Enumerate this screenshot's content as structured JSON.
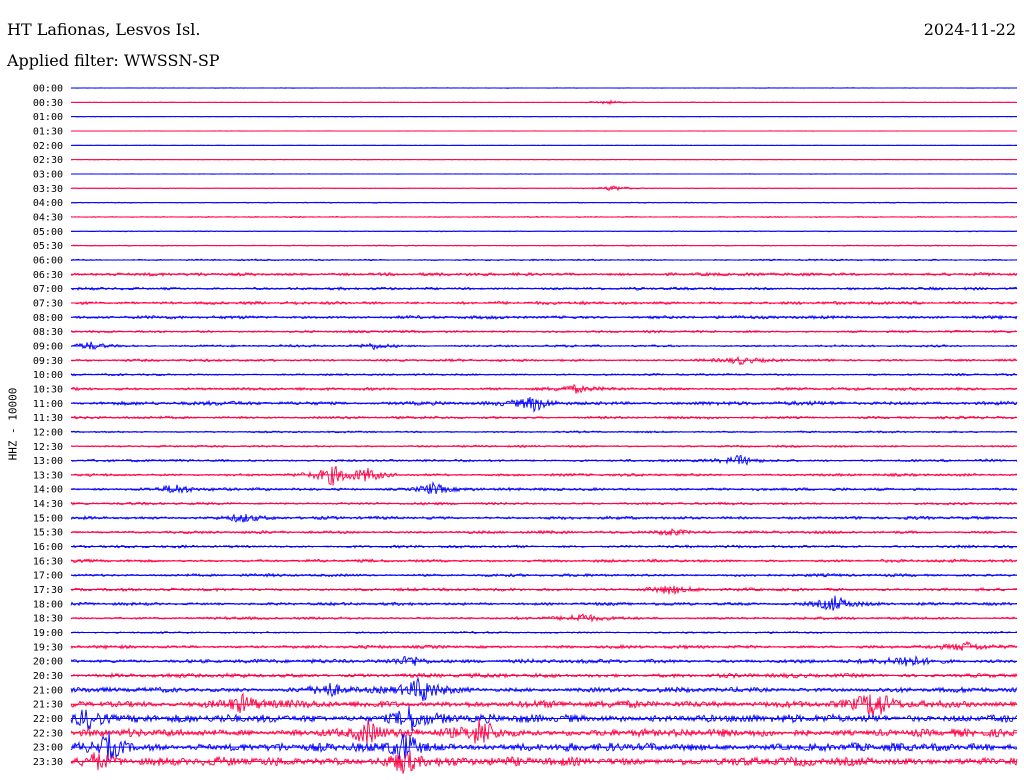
{
  "header": {
    "station": "HT Lafionas, Lesvos Isl.",
    "date": "2024-11-22",
    "filter": "Applied filter: WWSSN-SP"
  },
  "chart_data": {
    "type": "line",
    "title": "HT Lafionas, Lesvos Isl.",
    "subtitle": "Applied filter: WWSSN-SP",
    "ylabel": "HHZ - 10000",
    "xlabel": "",
    "colors": {
      "odd_traces": "#0000ff",
      "even_traces": "#ff0044",
      "grid": false
    },
    "rows": [
      "00:00",
      "00:30",
      "01:00",
      "01:30",
      "02:00",
      "02:30",
      "03:00",
      "03:30",
      "04:00",
      "04:30",
      "05:00",
      "05:30",
      "06:00",
      "06:30",
      "07:00",
      "07:30",
      "08:00",
      "08:30",
      "09:00",
      "09:30",
      "10:00",
      "10:30",
      "11:00",
      "11:30",
      "12:00",
      "12:30",
      "13:00",
      "13:30",
      "14:00",
      "14:30",
      "15:00",
      "15:30",
      "16:00",
      "16:30",
      "17:00",
      "17:30",
      "18:00",
      "18:30",
      "19:00",
      "19:30",
      "20:00",
      "20:30",
      "21:00",
      "21:30",
      "22:00",
      "22:30",
      "23:00",
      "23:30"
    ],
    "relative_noise_level": [
      0.3,
      0.3,
      0.3,
      0.2,
      0.2,
      0.3,
      0.3,
      0.3,
      0.5,
      0.6,
      0.5,
      0.6,
      0.9,
      1.8,
      1.5,
      1.7,
      1.8,
      1.3,
      1.2,
      1.4,
      1.1,
      1.6,
      2.2,
      1.5,
      1.0,
      1.1,
      1.4,
      1.5,
      1.6,
      1.4,
      1.7,
      1.6,
      1.5,
      1.6,
      1.6,
      1.7,
      1.7,
      1.5,
      1.0,
      1.8,
      2.2,
      2.4,
      2.8,
      4.0,
      4.5,
      4.2,
      4.5,
      4.8
    ],
    "events": [
      {
        "row": "00:30",
        "minute": 17.0,
        "amplitude": 2
      },
      {
        "row": "03:30",
        "minute": 17.2,
        "amplitude": 3
      },
      {
        "row": "09:00",
        "minute": 0.6,
        "amplitude": 4
      },
      {
        "row": "09:00",
        "minute": 9.6,
        "amplitude": 3
      },
      {
        "row": "09:30",
        "minute": 21.2,
        "amplitude": 4
      },
      {
        "row": "10:30",
        "minute": 16.0,
        "amplitude": 4
      },
      {
        "row": "11:00",
        "minute": 14.7,
        "amplitude": 7
      },
      {
        "row": "13:00",
        "minute": 21.2,
        "amplitude": 5
      },
      {
        "row": "13:30",
        "minute": 8.3,
        "amplitude": 10
      },
      {
        "row": "13:30",
        "minute": 9.4,
        "amplitude": 6
      },
      {
        "row": "14:00",
        "minute": 3.3,
        "amplitude": 5
      },
      {
        "row": "14:00",
        "minute": 11.5,
        "amplitude": 6
      },
      {
        "row": "15:00",
        "minute": 5.4,
        "amplitude": 5
      },
      {
        "row": "15:30",
        "minute": 19.0,
        "amplitude": 4
      },
      {
        "row": "17:30",
        "minute": 19.0,
        "amplitude": 5
      },
      {
        "row": "18:00",
        "minute": 24.2,
        "amplitude": 9
      },
      {
        "row": "18:30",
        "minute": 16.2,
        "amplitude": 5
      },
      {
        "row": "19:30",
        "minute": 28.4,
        "amplitude": 5
      },
      {
        "row": "20:00",
        "minute": 10.8,
        "amplitude": 6
      },
      {
        "row": "20:00",
        "minute": 26.5,
        "amplitude": 7
      },
      {
        "row": "21:00",
        "minute": 11.1,
        "amplitude": 14
      },
      {
        "row": "21:00",
        "minute": 8.2,
        "amplitude": 7
      },
      {
        "row": "21:30",
        "minute": 25.5,
        "amplitude": 14
      },
      {
        "row": "21:30",
        "minute": 5.5,
        "amplitude": 9
      },
      {
        "row": "22:00",
        "minute": 0.5,
        "amplitude": 10
      },
      {
        "row": "22:00",
        "minute": 10.8,
        "amplitude": 12
      },
      {
        "row": "22:30",
        "minute": 13.0,
        "amplitude": 14
      },
      {
        "row": "22:30",
        "minute": 9.4,
        "amplitude": 10
      },
      {
        "row": "23:00",
        "minute": 10.6,
        "amplitude": 14
      },
      {
        "row": "23:00",
        "minute": 1.2,
        "amplitude": 12
      },
      {
        "row": "23:30",
        "minute": 10.6,
        "amplitude": 12
      },
      {
        "row": "23:30",
        "minute": 0.8,
        "amplitude": 8
      }
    ]
  }
}
